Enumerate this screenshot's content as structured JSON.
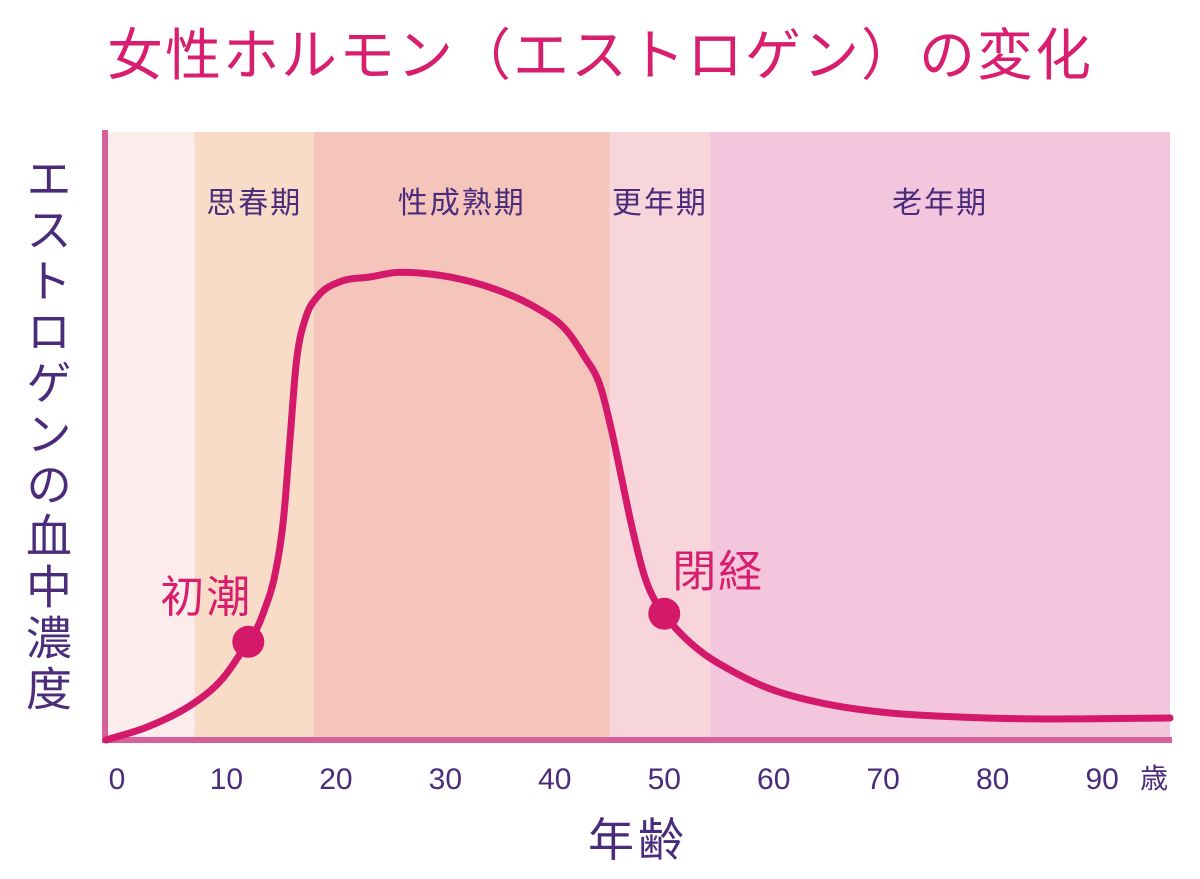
{
  "chart_data": {
    "type": "line",
    "title": "女性ホルモン（エストロゲン）の変化",
    "xlabel": "年齢",
    "ylabel": "エストロゲンの血中濃度",
    "x_unit": "歳",
    "x_ticks": [
      0,
      10,
      20,
      30,
      40,
      50,
      60,
      70,
      80,
      90
    ],
    "xlim": [
      -1,
      96.2
    ],
    "ylim": [
      0,
      130
    ],
    "grid": false,
    "bands": [
      {
        "from": -1,
        "to": 7.1,
        "color": "#fcecec"
      },
      {
        "label": "思春期",
        "from": 7.1,
        "to": 18,
        "color": "#f9dcc7"
      },
      {
        "label": "性成熟期",
        "from": 18,
        "to": 45,
        "color": "#f5c5bc"
      },
      {
        "label": "更年期",
        "from": 45,
        "to": 54.2,
        "color": "#f8d4db"
      },
      {
        "label": "老年期",
        "from": 54.2,
        "to": 96.2,
        "color": "#f4c6dd"
      }
    ],
    "series": [
      {
        "x": [
          -1,
          3,
          7.1,
          9.6,
          12,
          12.6,
          13.5,
          14.4,
          15.2,
          15.8,
          16.4,
          17.2,
          18.4,
          20.4,
          23.1,
          25.9,
          30.4,
          35,
          38.6,
          40.9,
          42.7,
          44.1,
          45.2,
          46.1,
          47.1,
          48.2,
          49.1,
          50,
          51,
          53.3,
          56,
          59.6,
          64.2,
          69.7,
          76.1,
          85.2,
          96.2
        ],
        "y": [
          0,
          3,
          8,
          13,
          21,
          23,
          28,
          35,
          47,
          64,
          81,
          90,
          95,
          98,
          99,
          100,
          99,
          96,
          92,
          88,
          82,
          76,
          66,
          56,
          45,
          35,
          30,
          27,
          24,
          19,
          15,
          11,
          8,
          6,
          5,
          4.5,
          4.7
        ],
        "color": "#d4196b"
      }
    ],
    "annotations": [
      {
        "text": "初潮",
        "x": 12,
        "y": 21,
        "placement": "upper-left"
      },
      {
        "text": "閉経",
        "x": 50,
        "y": 27,
        "placement": "upper-right"
      }
    ],
    "colors": {
      "title": "#d81e6e",
      "curve": "#d4196b",
      "axis": "#d6609a",
      "label": "#4a2c7b",
      "event_label": "#d81e6e"
    }
  }
}
